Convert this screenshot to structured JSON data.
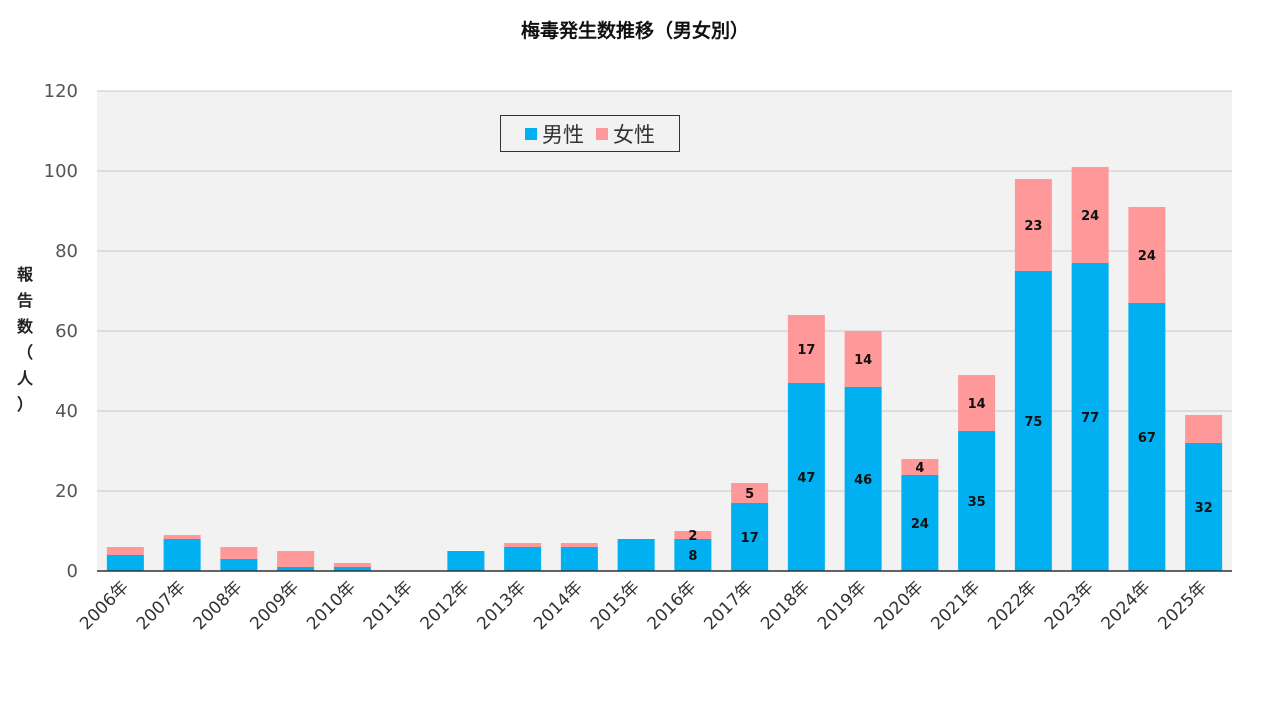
{
  "chart_data": {
    "type": "bar",
    "stacked": true,
    "title": "梅毒発生数推移（男女別）",
    "xlabel": "",
    "ylabel": "報告数（人）",
    "ylim": [
      0,
      120
    ],
    "yticks": [
      0,
      20,
      40,
      60,
      80,
      100,
      120
    ],
    "grid": true,
    "legend_position": "top-center",
    "categories": [
      "2006年",
      "2007年",
      "2008年",
      "2009年",
      "2010年",
      "2011年",
      "2012年",
      "2013年",
      "2014年",
      "2015年",
      "2016年",
      "2017年",
      "2018年",
      "2019年",
      "2020年",
      "2021年",
      "2022年",
      "2023年",
      "2024年",
      "2025年"
    ],
    "series": [
      {
        "name": "男性",
        "color": "#00b0f0",
        "values": [
          4,
          8,
          3,
          1,
          1,
          0,
          5,
          6,
          6,
          8,
          8,
          17,
          47,
          46,
          24,
          35,
          75,
          77,
          67,
          32
        ],
        "labels": [
          null,
          null,
          null,
          null,
          null,
          null,
          null,
          null,
          null,
          null,
          "8",
          "17",
          "47",
          "46",
          "24",
          "35",
          "75",
          "77",
          "67",
          "32"
        ]
      },
      {
        "name": "女性",
        "color": "#ff9999",
        "values": [
          2,
          1,
          3,
          4,
          1,
          0,
          0,
          1,
          1,
          0,
          2,
          5,
          17,
          14,
          4,
          14,
          23,
          24,
          24,
          7
        ],
        "labels": [
          null,
          null,
          null,
          null,
          null,
          null,
          null,
          null,
          null,
          null,
          "2",
          "5",
          "17",
          "14",
          "4",
          "14",
          "23",
          "24",
          "24",
          null
        ]
      }
    ]
  }
}
